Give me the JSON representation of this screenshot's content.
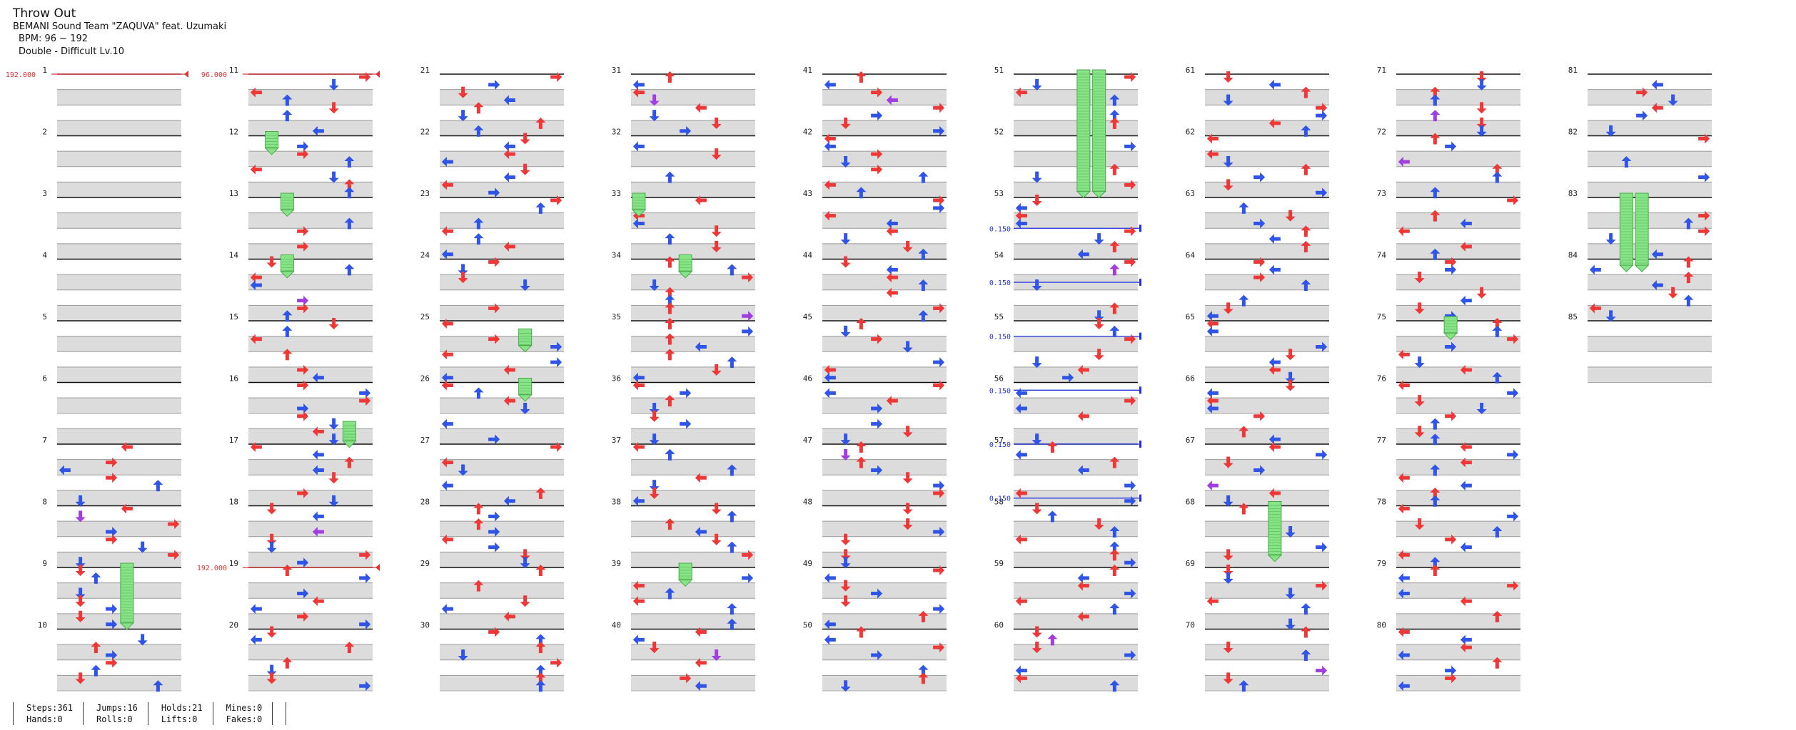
{
  "song": {
    "title": "Throw Out",
    "artist": "BEMANI Sound Team \"ZAQUVA\" feat. Uzumaki",
    "bpm": "BPM: 96 ~ 192",
    "difficulty": "Double - Difficult  Lv.10"
  },
  "measures": [
    "1",
    "2",
    "3",
    "4",
    "5",
    "6",
    "7",
    "8",
    "9",
    "10",
    "11",
    "12",
    "13",
    "14",
    "15",
    "16",
    "17",
    "18",
    "19",
    "20",
    "21",
    "22",
    "23",
    "24",
    "25",
    "26",
    "27",
    "28",
    "29",
    "30",
    "31",
    "32",
    "33",
    "34",
    "35",
    "36",
    "37",
    "38",
    "39",
    "40",
    "41",
    "42",
    "43",
    "44",
    "45",
    "46",
    "47",
    "48",
    "49",
    "50",
    "51",
    "52",
    "53",
    "54",
    "55",
    "56",
    "57",
    "58",
    "59",
    "60",
    "61",
    "62",
    "63",
    "64",
    "65",
    "66",
    "67",
    "68",
    "69",
    "70",
    "71",
    "72",
    "73",
    "74",
    "75",
    "76",
    "77",
    "78",
    "79",
    "80",
    "81",
    "82",
    "83",
    "84",
    "85"
  ],
  "bpm_changes": [
    {
      "measure": 1,
      "label": "192.000"
    },
    {
      "measure": 11,
      "label": "96.000"
    },
    {
      "measure": 19,
      "label": "192.000"
    }
  ],
  "speed_changes": [
    {
      "measure": 53.5,
      "label": "0.150"
    },
    {
      "measure": 54.375,
      "label": "0.150"
    },
    {
      "measure": 55.25,
      "label": "0.150"
    },
    {
      "measure": 56.125,
      "label": "0.150"
    },
    {
      "measure": 57,
      "label": "0.150"
    },
    {
      "measure": 57.875,
      "label": "0.150"
    }
  ],
  "stats": [
    [
      "Steps:361",
      "Hands:0"
    ],
    [
      "Jumps:16",
      "Rolls:0"
    ],
    [
      "Holds:21",
      "Lifts:0"
    ],
    [
      "Mines:0",
      "Fakes:0"
    ]
  ],
  "colors": {
    "red": "#ee3838",
    "blue": "#2f54e6",
    "purple": "#a23ee0",
    "hold": "#86e486",
    "bpm_line": "#e03333",
    "speed_line": "#2233dd"
  }
}
